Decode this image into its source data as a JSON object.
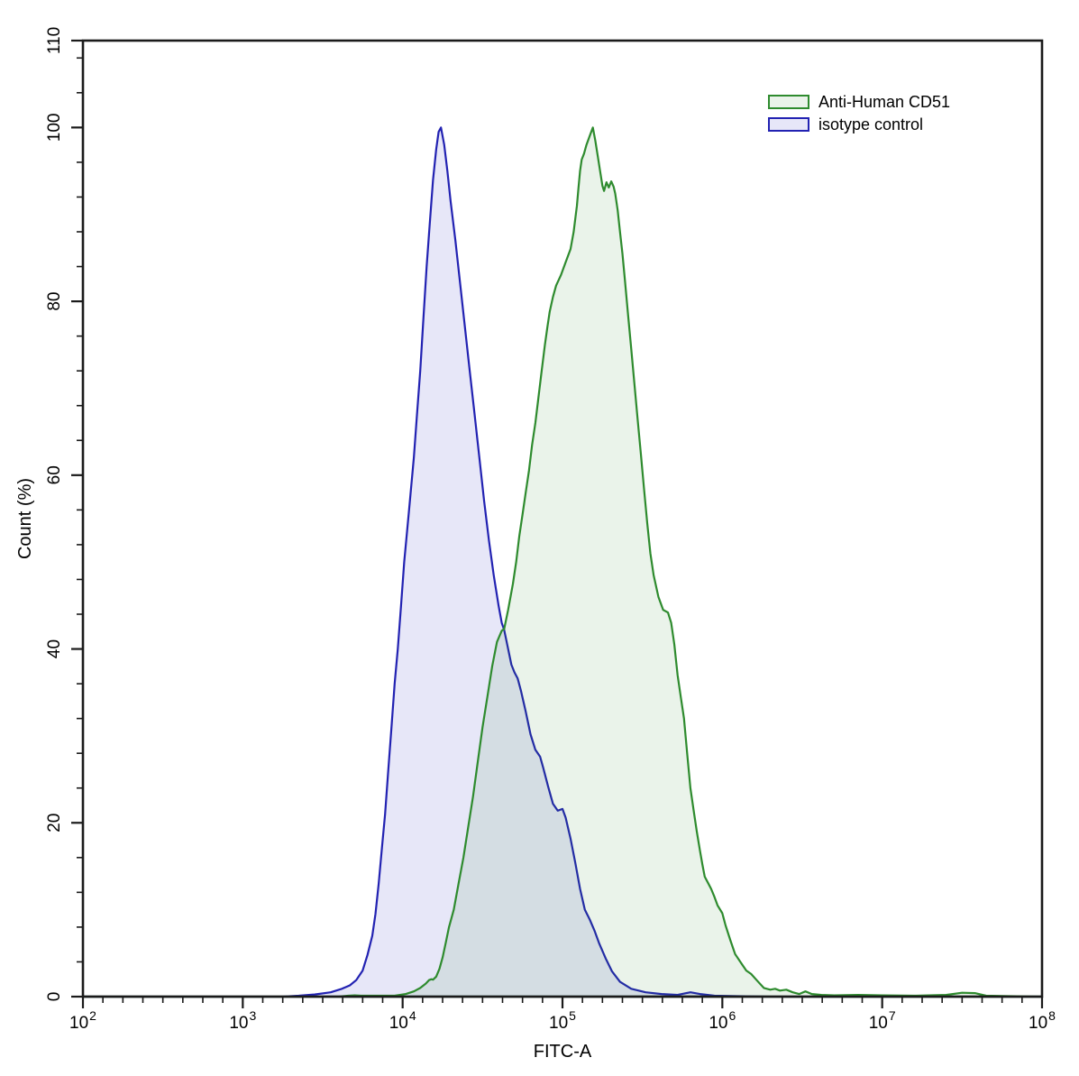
{
  "figure": {
    "background": "#ffffff"
  },
  "chart_data": {
    "type": "area",
    "title": "",
    "xlabel": "FITC-A",
    "ylabel": "Count (%)",
    "x_scale": "log10",
    "xlim_log10": [
      2,
      8
    ],
    "ylim": [
      0,
      110
    ],
    "x_tick_base": "10",
    "x_major_ticks_log10": [
      2,
      3,
      4,
      5,
      6,
      7,
      8
    ],
    "x_minor_divisions_per_decade": 8,
    "y_major_ticks": [
      0,
      20,
      40,
      60,
      80,
      100,
      110
    ],
    "y_minor_step": 4,
    "grid": false,
    "frame": "full-box",
    "axis_color": "#1a1a1a",
    "legend_position": "top-right",
    "legend": [
      {
        "label": "Anti-Human CD51",
        "stroke": "#2e8b2e",
        "fill": "rgba(45,140,45,0.10)"
      },
      {
        "label": "isotype control",
        "stroke": "#2222b2",
        "fill": "rgba(40,40,190,0.11)"
      }
    ],
    "series": [
      {
        "name": "isotype control",
        "stroke": "#2222b2",
        "fill": "rgba(40,40,190,0.11)",
        "peak": {
          "x_log10": 4.24,
          "pct": 100
        },
        "points": [
          [
            2.0,
            0
          ],
          [
            3.25,
            0
          ],
          [
            3.35,
            0.1
          ],
          [
            3.45,
            0.25
          ],
          [
            3.55,
            0.5
          ],
          [
            3.62,
            0.9
          ],
          [
            3.67,
            1.3
          ],
          [
            3.71,
            1.9
          ],
          [
            3.75,
            3.0
          ],
          [
            3.78,
            4.8
          ],
          [
            3.81,
            7.0
          ],
          [
            3.83,
            9.5
          ],
          [
            3.85,
            13
          ],
          [
            3.87,
            17
          ],
          [
            3.89,
            21
          ],
          [
            3.91,
            26
          ],
          [
            3.93,
            31
          ],
          [
            3.95,
            36
          ],
          [
            3.97,
            40
          ],
          [
            3.99,
            45
          ],
          [
            4.01,
            50
          ],
          [
            4.04,
            56
          ],
          [
            4.07,
            62
          ],
          [
            4.09,
            67
          ],
          [
            4.11,
            72
          ],
          [
            4.13,
            78
          ],
          [
            4.15,
            84
          ],
          [
            4.17,
            89
          ],
          [
            4.19,
            94
          ],
          [
            4.21,
            97.5
          ],
          [
            4.225,
            99.5
          ],
          [
            4.24,
            100
          ],
          [
            4.26,
            98
          ],
          [
            4.28,
            95
          ],
          [
            4.3,
            91.5
          ],
          [
            4.33,
            87
          ],
          [
            4.36,
            82
          ],
          [
            4.39,
            77
          ],
          [
            4.42,
            72
          ],
          [
            4.45,
            67
          ],
          [
            4.48,
            62
          ],
          [
            4.51,
            57
          ],
          [
            4.54,
            52.5
          ],
          [
            4.57,
            48.5
          ],
          [
            4.6,
            45
          ],
          [
            4.62,
            43
          ],
          [
            4.635,
            42.2
          ],
          [
            4.66,
            40
          ],
          [
            4.68,
            38.2
          ],
          [
            4.7,
            37.3
          ],
          [
            4.72,
            36.6
          ],
          [
            4.74,
            35.2
          ],
          [
            4.77,
            32.8
          ],
          [
            4.8,
            30.2
          ],
          [
            4.83,
            28.4
          ],
          [
            4.86,
            27.6
          ],
          [
            4.88,
            26.3
          ],
          [
            4.91,
            24.2
          ],
          [
            4.94,
            22.2
          ],
          [
            4.97,
            21.4
          ],
          [
            5.0,
            21.6
          ],
          [
            5.02,
            20.6
          ],
          [
            5.05,
            18.2
          ],
          [
            5.08,
            15.4
          ],
          [
            5.11,
            12.4
          ],
          [
            5.14,
            10
          ],
          [
            5.17,
            8.9
          ],
          [
            5.2,
            7.6
          ],
          [
            5.23,
            6.1
          ],
          [
            5.27,
            4.4
          ],
          [
            5.31,
            2.9
          ],
          [
            5.36,
            1.7
          ],
          [
            5.43,
            0.9
          ],
          [
            5.52,
            0.5
          ],
          [
            5.62,
            0.3
          ],
          [
            5.72,
            0.2
          ],
          [
            5.8,
            0.5
          ],
          [
            5.86,
            0.3
          ],
          [
            5.95,
            0.1
          ],
          [
            6.1,
            0.05
          ],
          [
            6.3,
            0
          ],
          [
            8.0,
            0
          ]
        ]
      },
      {
        "name": "Anti-Human CD51",
        "stroke": "#2e8b2e",
        "fill": "rgba(45,140,45,0.10)",
        "peak": {
          "x_log10": 5.19,
          "pct": 100
        },
        "points": [
          [
            2.0,
            0
          ],
          [
            3.6,
            0
          ],
          [
            3.66,
            0.1
          ],
          [
            3.7,
            0.15
          ],
          [
            3.74,
            0.1
          ],
          [
            3.95,
            0.1
          ],
          [
            4.02,
            0.3
          ],
          [
            4.07,
            0.6
          ],
          [
            4.11,
            1.0
          ],
          [
            4.145,
            1.5
          ],
          [
            4.165,
            1.9
          ],
          [
            4.18,
            2.0
          ],
          [
            4.19,
            1.95
          ],
          [
            4.21,
            2.3
          ],
          [
            4.23,
            3.2
          ],
          [
            4.25,
            4.5
          ],
          [
            4.27,
            6.2
          ],
          [
            4.29,
            8.0
          ],
          [
            4.32,
            10
          ],
          [
            4.35,
            13
          ],
          [
            4.38,
            16
          ],
          [
            4.41,
            19.5
          ],
          [
            4.44,
            23
          ],
          [
            4.47,
            27
          ],
          [
            4.5,
            31
          ],
          [
            4.53,
            34.5
          ],
          [
            4.56,
            38
          ],
          [
            4.59,
            40.8
          ],
          [
            4.62,
            42.1
          ],
          [
            4.635,
            42.3
          ],
          [
            4.66,
            44.5
          ],
          [
            4.69,
            47.5
          ],
          [
            4.71,
            50
          ],
          [
            4.73,
            53
          ],
          [
            4.75,
            55.5
          ],
          [
            4.77,
            58
          ],
          [
            4.79,
            60.5
          ],
          [
            4.81,
            63.5
          ],
          [
            4.83,
            66
          ],
          [
            4.85,
            69
          ],
          [
            4.87,
            72
          ],
          [
            4.89,
            75
          ],
          [
            4.905,
            77
          ],
          [
            4.92,
            78.8
          ],
          [
            4.94,
            80.5
          ],
          [
            4.96,
            81.8
          ],
          [
            4.99,
            83
          ],
          [
            5.02,
            84.5
          ],
          [
            5.05,
            86
          ],
          [
            5.07,
            88
          ],
          [
            5.09,
            91
          ],
          [
            5.1,
            93
          ],
          [
            5.11,
            95
          ],
          [
            5.12,
            96.3
          ],
          [
            5.135,
            97
          ],
          [
            5.15,
            98
          ],
          [
            5.17,
            99
          ],
          [
            5.19,
            100
          ],
          [
            5.205,
            98.5
          ],
          [
            5.22,
            96.8
          ],
          [
            5.235,
            95
          ],
          [
            5.25,
            93.3
          ],
          [
            5.26,
            92.7
          ],
          [
            5.275,
            93.7
          ],
          [
            5.29,
            93.1
          ],
          [
            5.305,
            93.8
          ],
          [
            5.32,
            93.2
          ],
          [
            5.33,
            92.4
          ],
          [
            5.345,
            90.5
          ],
          [
            5.36,
            88
          ],
          [
            5.375,
            85.5
          ],
          [
            5.39,
            82.5
          ],
          [
            5.41,
            78.5
          ],
          [
            5.43,
            74.5
          ],
          [
            5.45,
            70.5
          ],
          [
            5.47,
            66.5
          ],
          [
            5.49,
            62.5
          ],
          [
            5.51,
            58.5
          ],
          [
            5.53,
            54.5
          ],
          [
            5.55,
            51
          ],
          [
            5.57,
            48.5
          ],
          [
            5.6,
            46
          ],
          [
            5.63,
            44.5
          ],
          [
            5.66,
            44.2
          ],
          [
            5.68,
            43
          ],
          [
            5.7,
            40.5
          ],
          [
            5.72,
            37
          ],
          [
            5.74,
            34.5
          ],
          [
            5.76,
            32
          ],
          [
            5.78,
            28
          ],
          [
            5.8,
            24
          ],
          [
            5.82,
            21.5
          ],
          [
            5.84,
            19
          ],
          [
            5.86,
            16.8
          ],
          [
            5.875,
            15.2
          ],
          [
            5.89,
            13.8
          ],
          [
            5.91,
            13.1
          ],
          [
            5.93,
            12.4
          ],
          [
            5.95,
            11.5
          ],
          [
            5.97,
            10.5
          ],
          [
            6.0,
            9.6
          ],
          [
            6.02,
            8.2
          ],
          [
            6.05,
            6.5
          ],
          [
            6.08,
            4.9
          ],
          [
            6.12,
            3.8
          ],
          [
            6.15,
            3.0
          ],
          [
            6.18,
            2.6
          ],
          [
            6.22,
            1.8
          ],
          [
            6.26,
            1.0
          ],
          [
            6.3,
            0.8
          ],
          [
            6.33,
            0.9
          ],
          [
            6.36,
            0.7
          ],
          [
            6.4,
            0.8
          ],
          [
            6.44,
            0.5
          ],
          [
            6.48,
            0.3
          ],
          [
            6.52,
            0.6
          ],
          [
            6.56,
            0.3
          ],
          [
            6.62,
            0.2
          ],
          [
            6.7,
            0.15
          ],
          [
            6.85,
            0.2
          ],
          [
            7.0,
            0.15
          ],
          [
            7.2,
            0.1
          ],
          [
            7.4,
            0.2
          ],
          [
            7.5,
            0.45
          ],
          [
            7.58,
            0.4
          ],
          [
            7.65,
            0.1
          ],
          [
            7.8,
            0.05
          ],
          [
            8.0,
            0
          ]
        ]
      }
    ]
  }
}
